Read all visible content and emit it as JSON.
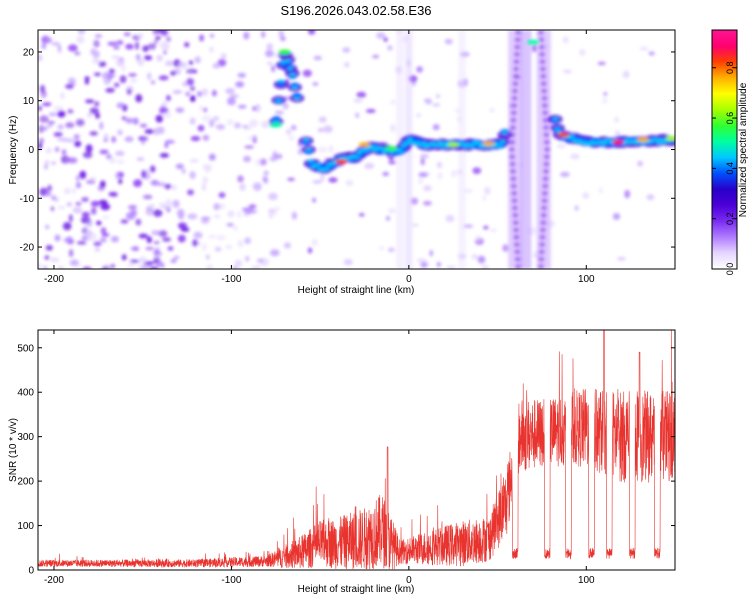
{
  "title": "S196.2026.043.02.58.E36",
  "chart_data": [
    {
      "type": "heatmap",
      "xlabel": "Height of straight line (km)",
      "ylabel": "Frequency (Hz)",
      "xlim": [
        -209,
        150
      ],
      "ylim": [
        -24.5,
        24.5
      ],
      "x_ticks": [
        -200,
        -100,
        0,
        100
      ],
      "y_ticks": [
        -20,
        -10,
        0,
        10,
        20
      ],
      "colorbar": {
        "label": "Normalized spectral amplitude",
        "range": [
          0,
          0.95
        ],
        "ticks": [
          0.0,
          0.2,
          0.4,
          0.6,
          0.8
        ],
        "colors": [
          "#ffffff",
          "#e6d6ff",
          "#b07cff",
          "#7a2cf2",
          "#4b00d8",
          "#2800c8",
          "#0050ff",
          "#00c8ff",
          "#00ffa0",
          "#30ff30",
          "#a8ff00",
          "#ffff00",
          "#ffb000",
          "#ff4000",
          "#ff0070",
          "#ff1493"
        ]
      },
      "ridge": [
        {
          "x": -75,
          "y": 5
        },
        {
          "x": -70,
          "y": 20
        },
        {
          "x": -66,
          "y": 16
        },
        {
          "x": -55,
          "y": -3
        },
        {
          "x": -48,
          "y": -4
        },
        {
          "x": -38,
          "y": -2
        },
        {
          "x": -30,
          "y": -1.5
        },
        {
          "x": -22,
          "y": 0.5
        },
        {
          "x": -15,
          "y": 0
        },
        {
          "x": -5,
          "y": -0.5
        },
        {
          "x": 0,
          "y": 2
        },
        {
          "x": 10,
          "y": 1
        },
        {
          "x": 30,
          "y": 1
        },
        {
          "x": 52,
          "y": 1
        },
        {
          "x": 70,
          "y": 22
        },
        {
          "x": 85,
          "y": 3
        },
        {
          "x": 100,
          "y": 1.5
        },
        {
          "x": 120,
          "y": 1.5
        },
        {
          "x": 150,
          "y": 2
        }
      ]
    },
    {
      "type": "line",
      "xlabel": "Height of straight line (km)",
      "ylabel": "SNR (10 * v/v)",
      "xlim": [
        -209,
        150
      ],
      "ylim": [
        0,
        540
      ],
      "x_ticks": [
        -200,
        -100,
        0,
        100
      ],
      "y_ticks": [
        0,
        100,
        200,
        300,
        400,
        500
      ],
      "color": "#e8332e",
      "envelope": [
        {
          "x": -209,
          "base": 15,
          "amp": 12
        },
        {
          "x": -120,
          "base": 15,
          "amp": 14
        },
        {
          "x": -80,
          "base": 20,
          "amp": 20
        },
        {
          "x": -60,
          "base": 40,
          "amp": 60
        },
        {
          "x": -50,
          "base": 60,
          "amp": 80
        },
        {
          "x": -40,
          "base": 60,
          "amp": 90
        },
        {
          "x": -25,
          "base": 70,
          "amp": 110
        },
        {
          "x": -15,
          "base": 90,
          "amp": 130
        },
        {
          "x": -10,
          "base": 60,
          "amp": 100
        },
        {
          "x": -5,
          "base": 40,
          "amp": 40
        },
        {
          "x": 10,
          "base": 50,
          "amp": 60
        },
        {
          "x": 30,
          "base": 60,
          "amp": 80
        },
        {
          "x": 45,
          "base": 70,
          "amp": 80
        },
        {
          "x": 55,
          "base": 150,
          "amp": 120
        },
        {
          "x": 62,
          "base": 300,
          "amp": 130
        },
        {
          "x": 80,
          "base": 310,
          "amp": 120
        },
        {
          "x": 100,
          "base": 320,
          "amp": 140
        },
        {
          "x": 120,
          "base": 300,
          "amp": 160
        },
        {
          "x": 150,
          "base": 300,
          "amp": 160
        }
      ],
      "dips": [
        60,
        78,
        90,
        103,
        113,
        126,
        140
      ],
      "peaks": [
        {
          "x": -12,
          "y": 277
        },
        {
          "x": 110,
          "y": 540
        },
        {
          "x": 130,
          "y": 490
        }
      ]
    }
  ]
}
